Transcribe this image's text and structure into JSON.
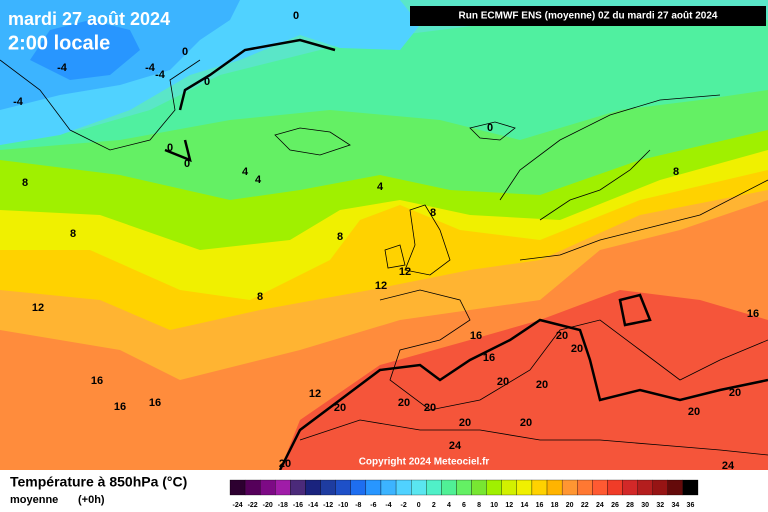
{
  "header": {
    "date": "mardi 27 août 2024",
    "time": "2:00 locale",
    "run": "Run ECMWF ENS (moyenne) 0Z du mardi 27 août 2024"
  },
  "map": {
    "contour_labels": [
      -4,
      -4,
      -4,
      -4,
      0,
      0,
      0,
      0,
      0,
      0,
      4,
      4,
      4,
      8,
      8,
      8,
      8,
      8,
      8,
      12,
      12,
      12,
      12,
      16,
      16,
      16,
      16,
      16,
      16,
      20,
      20,
      20,
      20,
      20,
      20,
      20,
      20,
      20,
      20,
      20,
      20,
      24,
      24
    ],
    "copyright": "Copyright 2024 Meteociel.fr"
  },
  "legend": {
    "title": "Température à 850hPa (°C)",
    "mode": "moyenne",
    "step": "(+0h)",
    "labels": [
      -24,
      -22,
      -20,
      -18,
      -16,
      -14,
      -12,
      -10,
      -8,
      -6,
      -4,
      -2,
      0,
      2,
      4,
      6,
      8,
      10,
      12,
      14,
      16,
      18,
      20,
      22,
      24,
      26,
      28,
      30,
      32,
      34,
      36
    ],
    "colors": [
      "#2d0030",
      "#55005a",
      "#7d0a85",
      "#a01ca8",
      "#4b2a7a",
      "#1a237e",
      "#1e3ca0",
      "#1e50c8",
      "#1e6ef0",
      "#2896ff",
      "#3cb4ff",
      "#50d2ff",
      "#5ae6f0",
      "#50f0c8",
      "#50f096",
      "#64f064",
      "#78e632",
      "#a0f000",
      "#d2f000",
      "#f0f000",
      "#ffd200",
      "#ffb400",
      "#ff9632",
      "#ff7832",
      "#ff5a32",
      "#f03c28",
      "#d22828",
      "#b41e1e",
      "#961414",
      "#640a0a",
      "#000000"
    ]
  }
}
